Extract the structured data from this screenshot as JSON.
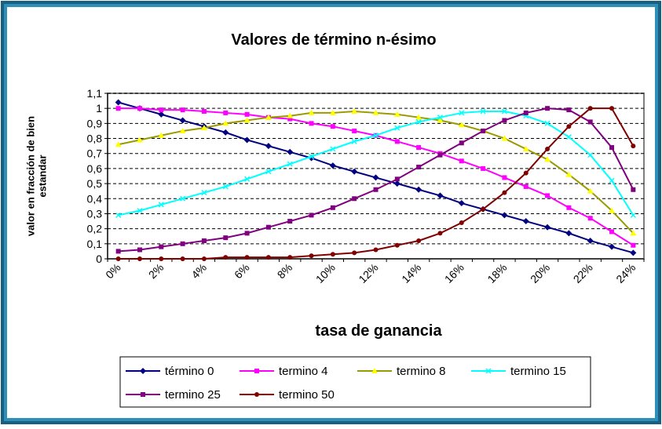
{
  "chart_data": {
    "type": "line",
    "title": "Valores de término n-ésimo",
    "x_label": "tasa de ganancia",
    "y_label": "valor en fracción de bien estandar",
    "categories": [
      "0%",
      null,
      "2%",
      null,
      "4%",
      null,
      "6%",
      null,
      "8%",
      null,
      "10%",
      null,
      "12%",
      null,
      "14%",
      null,
      "16%",
      null,
      "18%",
      null,
      "20%",
      null,
      "22%",
      null,
      "24%"
    ],
    "ylim": [
      0,
      1.1
    ],
    "yticks": [
      0,
      {
        "value": 0.1,
        "label": "0,1"
      },
      {
        "value": 0.2,
        "label": "0,2"
      },
      {
        "value": 0.3,
        "label": "0,3"
      },
      {
        "value": 0.4,
        "label": "0,4"
      },
      {
        "value": 0.5,
        "label": "0,5"
      },
      {
        "value": 0.6,
        "label": "0,6"
      },
      {
        "value": 0.7,
        "label": "0,7"
      },
      {
        "value": 0.8,
        "label": "0,8"
      },
      {
        "value": 0.9,
        "label": "0,9"
      },
      1,
      {
        "value": 1.1,
        "label": "1,1"
      }
    ],
    "grid": true,
    "legend": "bottom",
    "series": [
      {
        "name": "término 0",
        "color": "#000080",
        "marker": "diamond",
        "values": [
          1.04,
          1.0,
          0.96,
          0.92,
          0.88,
          0.84,
          0.79,
          0.75,
          0.71,
          0.67,
          0.62,
          0.58,
          0.54,
          0.5,
          0.46,
          0.42,
          0.37,
          0.33,
          0.29,
          0.25,
          0.21,
          0.17,
          0.12,
          0.08,
          0.04
        ]
      },
      {
        "name": "termino 4",
        "color": "#ff00ff",
        "marker": "square",
        "values": [
          1.0,
          1.0,
          0.99,
          0.99,
          0.98,
          0.97,
          0.96,
          0.94,
          0.93,
          0.9,
          0.88,
          0.85,
          0.82,
          0.78,
          0.74,
          0.7,
          0.65,
          0.6,
          0.54,
          0.48,
          0.42,
          0.34,
          0.27,
          0.18,
          0.09
        ]
      },
      {
        "name": "termino 8",
        "color": "#999900",
        "marker_color": "#ffff00",
        "marker": "triangle",
        "values": [
          0.76,
          0.79,
          0.82,
          0.85,
          0.87,
          0.9,
          0.92,
          0.94,
          0.95,
          0.97,
          0.97,
          0.98,
          0.97,
          0.96,
          0.94,
          0.92,
          0.89,
          0.85,
          0.8,
          0.73,
          0.66,
          0.56,
          0.45,
          0.32,
          0.17
        ]
      },
      {
        "name": "termino 15",
        "color": "#00ffff",
        "marker": "x",
        "values": [
          0.29,
          0.32,
          0.36,
          0.4,
          0.44,
          0.48,
          0.53,
          0.58,
          0.63,
          0.68,
          0.73,
          0.78,
          0.82,
          0.87,
          0.91,
          0.94,
          0.97,
          0.98,
          0.98,
          0.95,
          0.9,
          0.81,
          0.69,
          0.52,
          0.29
        ]
      },
      {
        "name": "termino 25",
        "color": "#800080",
        "marker": "square",
        "values": [
          0.05,
          0.06,
          0.08,
          0.1,
          0.12,
          0.14,
          0.17,
          0.21,
          0.25,
          0.29,
          0.34,
          0.4,
          0.46,
          0.53,
          0.61,
          0.69,
          0.77,
          0.85,
          0.92,
          0.97,
          1.0,
          0.99,
          0.91,
          0.74,
          0.46
        ]
      },
      {
        "name": "termino 50",
        "color": "#800000",
        "marker": "circle",
        "values": [
          0,
          0,
          0,
          0,
          0,
          0.01,
          0.01,
          0.01,
          0.01,
          0.02,
          0.03,
          0.04,
          0.06,
          0.09,
          0.12,
          0.17,
          0.24,
          0.33,
          0.44,
          0.57,
          0.73,
          0.88,
          1.0,
          1.0,
          0.75
        ]
      }
    ]
  }
}
